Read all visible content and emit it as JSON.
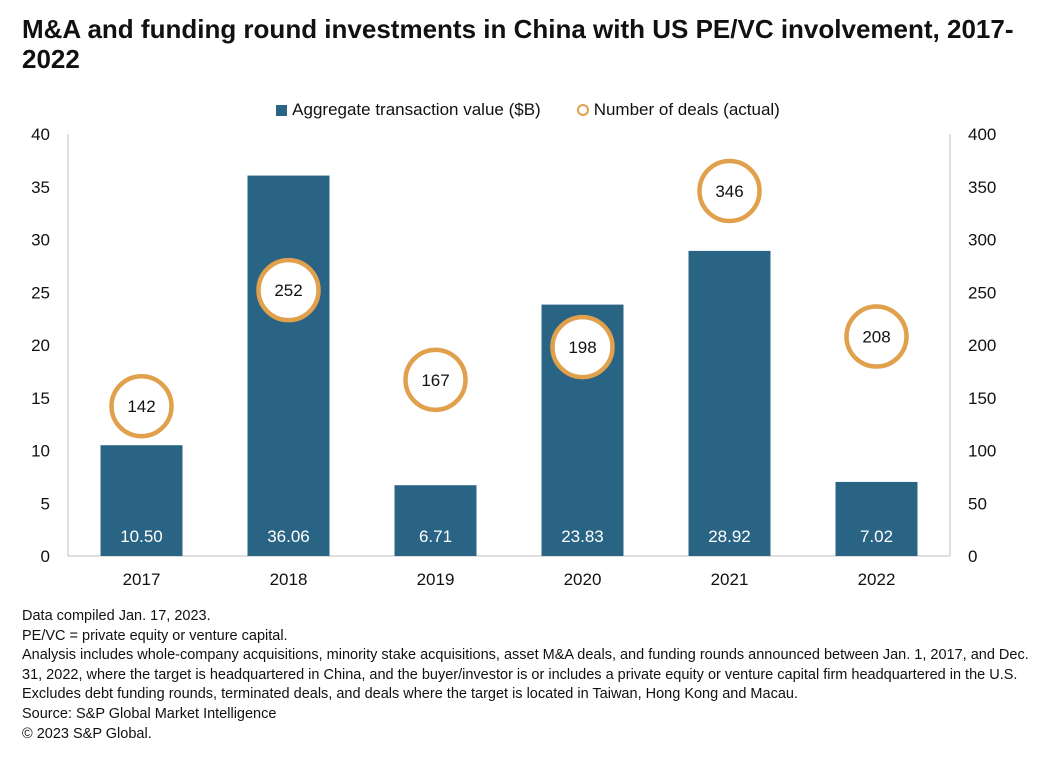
{
  "title": "M&A and funding round investments in China with US PE/VC involvement, 2017-2022",
  "legend": {
    "bars": "Aggregate transaction value ($B)",
    "circles": "Number of deals (actual)"
  },
  "chart_data": {
    "type": "bar",
    "categories": [
      "2017",
      "2018",
      "2019",
      "2020",
      "2021",
      "2022"
    ],
    "series": [
      {
        "name": "Aggregate transaction value ($B)",
        "type": "bar",
        "axis": "left",
        "color": "#2a6484",
        "values": [
          10.5,
          36.06,
          6.71,
          23.83,
          28.92,
          7.02
        ],
        "labels": [
          "10.50",
          "36.06",
          "6.71",
          "23.83",
          "28.92",
          "7.02"
        ]
      },
      {
        "name": "Number of deals (actual)",
        "type": "circle",
        "axis": "right",
        "color": "#e0a04c",
        "values": [
          142,
          252,
          167,
          198,
          346,
          208
        ],
        "labels": [
          "142",
          "252",
          "167",
          "198",
          "346",
          "208"
        ]
      }
    ],
    "y_left": {
      "ylim": [
        0,
        40
      ],
      "ticks": [
        "0",
        "5",
        "10",
        "15",
        "20",
        "25",
        "30",
        "35",
        "40"
      ]
    },
    "y_right": {
      "ylim": [
        0,
        400
      ],
      "ticks": [
        "0",
        "50",
        "100",
        "150",
        "200",
        "250",
        "300",
        "350",
        "400"
      ]
    },
    "grid": false,
    "legend_position": "top-center"
  },
  "notes": [
    "Data compiled Jan. 17, 2023.",
    "PE/VC = private equity or venture capital.",
    "Analysis includes whole-company acquisitions, minority stake acquisitions, asset M&A deals, and funding rounds announced between Jan. 1, 2017, and Dec. 31, 2022, where the target is headquartered in China, and the buyer/investor is or includes a private equity or venture capital firm headquartered in the U.S.",
    "Excludes debt funding rounds, terminated deals, and deals where the target is located in Taiwan, Hong Kong and Macau.",
    "Source: S&P Global Market Intelligence",
    "© 2023 S&P Global."
  ]
}
